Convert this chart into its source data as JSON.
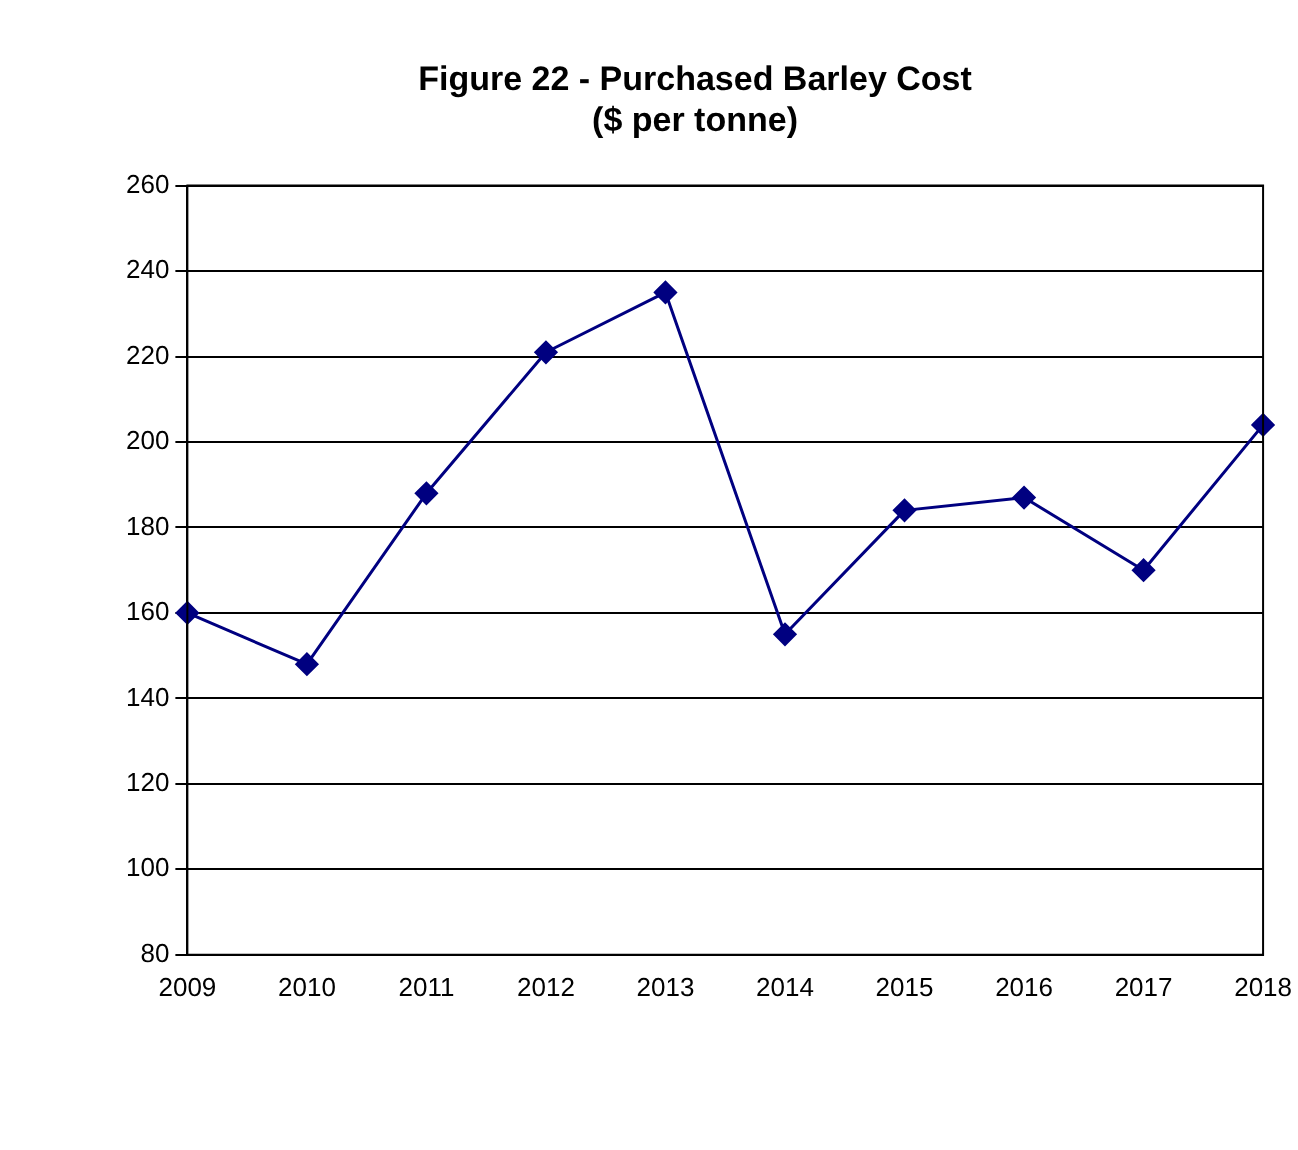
{
  "chart_data": {
    "type": "line",
    "title": "Figure 22 - Purchased Barley Cost",
    "subtitle": "($ per tonne)",
    "categories": [
      "2009",
      "2010",
      "2011",
      "2012",
      "2013",
      "2014",
      "2015",
      "2016",
      "2017",
      "2018"
    ],
    "series": [
      {
        "color": "#000080",
        "values": [
          160,
          148,
          188,
          221,
          235,
          155,
          184,
          187,
          170,
          204
        ]
      }
    ],
    "ylim": [
      80,
      260
    ],
    "yticks": [
      80,
      100,
      120,
      140,
      160,
      180,
      200,
      220,
      240,
      260
    ],
    "grid": "y",
    "legend": false,
    "marker": "diamond",
    "line_style": "solid"
  }
}
